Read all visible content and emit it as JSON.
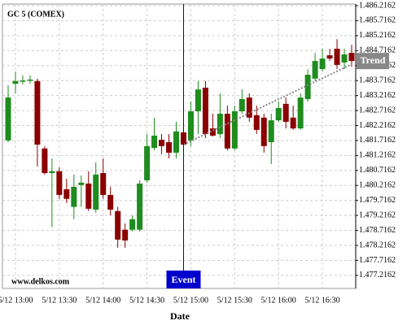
{
  "chart_data": {
    "type": "candlestick",
    "title": "GC 5 (COMEX)",
    "x_label": "Date",
    "watermark": "www.delkos.com",
    "categories": [
      null,
      "5/12 13:00",
      null,
      null,
      null,
      null,
      null,
      "5/12 13:30",
      null,
      null,
      null,
      null,
      null,
      "5/12 14:00",
      null,
      null,
      null,
      null,
      null,
      "5/12 14:30",
      null,
      null,
      null,
      null,
      null,
      "5/12 15:00",
      null,
      null,
      null,
      null,
      null,
      "5/12 15:30",
      null,
      null,
      null,
      null,
      null,
      "5/12 16:00",
      null,
      null,
      null,
      null,
      null,
      "5/12 16:30",
      null,
      null,
      null,
      null
    ],
    "open": [
      1481.72,
      1483.61,
      1483.72,
      1483.75,
      1483.7,
      1481.45,
      1480.63,
      1480.69,
      1480.09,
      1479.5,
      1480.23,
      1480.28,
      1479.41,
      1480.63,
      1479.9,
      1479.36,
      1478.74,
      1478.74,
      1478.74,
      1480.39,
      1481.47,
      1481.74,
      1481.66,
      1481.31,
      1481.99,
      1481.72,
      1482.69,
      1483.48,
      1482.12,
      1481.93,
      1482.61,
      1481.45,
      1482.69,
      1483.15,
      1482.56,
      1482.48,
      1481.66,
      1482.39,
      1482.94,
      1482.48,
      1482.12,
      1483.1,
      1483.78,
      1484.1,
      1484.56,
      1484.78,
      1484.32,
      1484.64
    ],
    "high": [
      1483.56,
      1484.02,
      1483.89,
      1483.89,
      1483.78,
      1481.53,
      1481.12,
      1480.82,
      1480.44,
      1480.58,
      1480.55,
      1480.69,
      1480.99,
      1481.12,
      1480.17,
      1479.5,
      1478.95,
      1479.22,
      1480.39,
      1481.93,
      1482.48,
      1481.93,
      1481.93,
      1482.34,
      1482.21,
      1483.02,
      1483.7,
      1483.7,
      1482.61,
      1483.29,
      1482.88,
      1482.88,
      1483.42,
      1483.29,
      1482.88,
      1482.61,
      1482.61,
      1483.02,
      1483.15,
      1482.88,
      1483.29,
      1484.1,
      1484.64,
      1484.78,
      1484.78,
      1485.1,
      1484.78,
      1484.91
    ],
    "low": [
      1481.66,
      1483.29,
      1483.59,
      1483.61,
      1480.85,
      1480.58,
      1478.82,
      1479.77,
      1479.63,
      1479.09,
      1479.5,
      1479.36,
      1479.31,
      1479.77,
      1479.22,
      1478.14,
      1478.14,
      1478.68,
      1478.68,
      1480.31,
      1481.39,
      1481.26,
      1481.12,
      1481.12,
      1481.39,
      1481.53,
      1481.93,
      1481.8,
      1481.85,
      1481.8,
      1481.39,
      1481.39,
      1482.61,
      1482.34,
      1481.93,
      1481.31,
      1480.93,
      1482.34,
      1482.12,
      1482.07,
      1482.07,
      1483.02,
      1483.7,
      1484.02,
      1484.37,
      1484.1,
      1484.1,
      1484.18
    ],
    "close": [
      1483.15,
      1483.7,
      1483.72,
      1483.75,
      1481.58,
      1480.63,
      1480.69,
      1479.9,
      1479.77,
      1480.17,
      1480.31,
      1479.44,
      1480.58,
      1479.9,
      1479.41,
      1478.41,
      1478.38,
      1479.09,
      1480.28,
      1481.53,
      1481.88,
      1481.53,
      1481.31,
      1482.02,
      1481.58,
      1482.69,
      1483.42,
      1481.93,
      1481.88,
      1482.61,
      1481.45,
      1482.69,
      1483.1,
      1482.48,
      1482.07,
      1481.53,
      1482.39,
      1482.8,
      1482.34,
      1482.12,
      1483.15,
      1483.91,
      1484.37,
      1484.45,
      1484.45,
      1484.24,
      1484.59,
      1484.37
    ],
    "up_color": "#1e8c1e",
    "down_color": "#8b0000",
    "ylim": [
      1476.78,
      1486.27
    ],
    "yticks": [
      {
        "value": 1477.2162,
        "label": "1.477.2162"
      },
      {
        "value": 1477.7162,
        "label": "1.477.7162"
      },
      {
        "value": 1478.2162,
        "label": "1.478.2162"
      },
      {
        "value": 1478.7162,
        "label": "1.478.7162"
      },
      {
        "value": 1479.2162,
        "label": "1.479.2162"
      },
      {
        "value": 1479.7162,
        "label": "1.479.7162"
      },
      {
        "value": 1480.2162,
        "label": "1.480.2162"
      },
      {
        "value": 1480.7162,
        "label": "1.480.7162"
      },
      {
        "value": 1481.2162,
        "label": "1.481.2162"
      },
      {
        "value": 1481.7162,
        "label": "1.481.7162"
      },
      {
        "value": 1482.2162,
        "label": "1.482.2162"
      },
      {
        "value": 1482.7162,
        "label": "1.482.7162"
      },
      {
        "value": 1483.2162,
        "label": "1.483.2162"
      },
      {
        "value": 1483.7162,
        "label": "1.483.7162"
      },
      {
        "value": 1484.2162,
        "label": "1.484.2162"
      },
      {
        "value": 1484.7162,
        "label": "1.484.7162"
      },
      {
        "value": 1485.2162,
        "label": "1.485.2162"
      },
      {
        "value": 1485.7162,
        "label": "1.485.7162"
      },
      {
        "value": 1486.2162,
        "label": "1.486.2162"
      }
    ],
    "grid": true,
    "event": {
      "label": "Event",
      "index": 24,
      "color": "#0000cc"
    },
    "trend": {
      "label": "Trend",
      "start": {
        "index": 24,
        "value": 1481.58
      },
      "end": {
        "index": 47,
        "value": 1484.26
      },
      "color": "#888888"
    }
  }
}
